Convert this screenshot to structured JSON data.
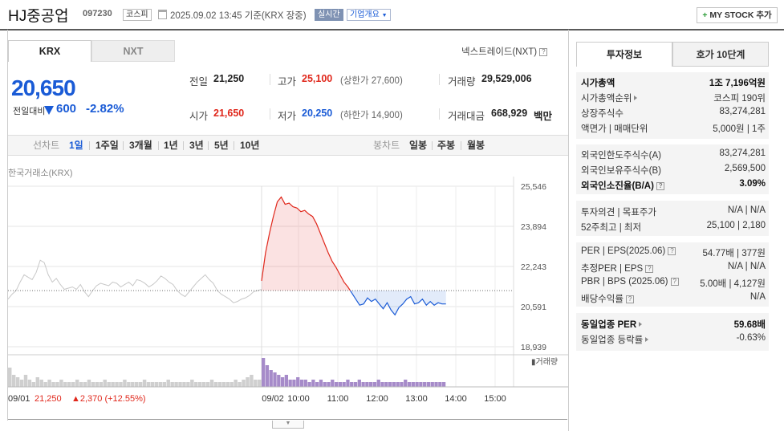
{
  "header": {
    "title": "HJ중공업",
    "code": "097230",
    "market_tag": "코스피",
    "datetime": "2025.09.02 13:45",
    "datetime_suffix": "기준(KRX 장중)",
    "realtime_tag": "실시간",
    "company_tag": "기업개요",
    "mystock_button": "MY STOCK 추가",
    "mystock_icon": "plus-icon"
  },
  "tabs": {
    "krx": "KRX",
    "nxt": "NXT",
    "nxt_link": "넥스트레이드(NXT)"
  },
  "price": {
    "current": "20,650",
    "change_label": "전일대비",
    "change_value": "600",
    "change_pct": "-2.82%",
    "direction_icon": "down-triangle-icon"
  },
  "stats": {
    "prev_close_label": "전일",
    "prev_close": "21,250",
    "high_label": "고가",
    "high": "25,100",
    "upper_limit": "(상한가 27,600)",
    "volume_label": "거래량",
    "volume": "29,529,006",
    "open_label": "시가",
    "open": "21,650",
    "low_label": "저가",
    "low": "20,250",
    "lower_limit": "(하한가 14,900)",
    "amount_label": "거래대금",
    "amount": "668,929",
    "amount_unit": "백만"
  },
  "periods": {
    "line_label": "선차트",
    "items": [
      "1일",
      "1주일",
      "3개월",
      "1년",
      "3년",
      "5년",
      "10년"
    ],
    "active": "1일",
    "candle_label": "봉차트",
    "candle_items": [
      "일봉",
      "주봉",
      "월봉"
    ]
  },
  "chart_data": {
    "type": "line",
    "source_label": "한국거래소(KRX)",
    "y_ticks": [
      "25,546",
      "23,894",
      "22,243",
      "20,591",
      "18,939"
    ],
    "ylim": [
      18939,
      25546
    ],
    "x_ticks": [
      "09/01",
      "09/02",
      "10:00",
      "11:00",
      "12:00",
      "13:00",
      "14:00",
      "15:00"
    ],
    "prev_close": 21250,
    "volume_label": "거래량",
    "prev_day_info": {
      "date": "09/01",
      "close": "21,250",
      "change": "▲2,370",
      "pct": "(+12.55%)"
    },
    "series": [
      {
        "values": [
          20900,
          21100,
          21250,
          21600,
          21900,
          21800,
          21700,
          22000,
          22500,
          22400,
          21900,
          21600,
          21750,
          21500,
          21300,
          21350,
          21400,
          21300,
          21500,
          21200,
          21000,
          21250,
          21450,
          21550,
          21500,
          21450,
          21600,
          21550,
          21400,
          21500,
          21600,
          21450,
          21700,
          21650,
          21550,
          21400,
          21500,
          21650,
          21850,
          21750,
          21600,
          21500,
          21250,
          21100,
          21000,
          21200,
          21400,
          21600,
          21750,
          21900,
          21700,
          21550,
          21250,
          21100,
          21000,
          20900,
          20750,
          20800,
          20900,
          20950,
          21050,
          21200,
          21250,
          21300
        ]
      },
      {
        "values": [
          21650,
          22800,
          23600,
          24300,
          24900,
          25100,
          24800,
          24850,
          24700,
          24650,
          24500,
          24550,
          24400,
          24300,
          24000,
          23600,
          23200,
          22800,
          22450,
          22200,
          21900,
          21600,
          21400,
          21150,
          20900,
          20650,
          20700,
          20950,
          20800,
          20900,
          20700,
          20500,
          20750,
          20450,
          20250,
          20550,
          20700,
          20900,
          21000,
          20700,
          20750,
          20900,
          20650,
          20800,
          20650,
          20750,
          20700,
          20700
        ]
      }
    ],
    "volume_series": [
      [
        8,
        5,
        4,
        3,
        5,
        3,
        2,
        4,
        3,
        2,
        3,
        2,
        2,
        3,
        2,
        2,
        2,
        3,
        2,
        2,
        3,
        2,
        2,
        2,
        3,
        2,
        2,
        2,
        2,
        3,
        2,
        2,
        2,
        2,
        3,
        2,
        2,
        2,
        2,
        2,
        3,
        2,
        2,
        2,
        2,
        2,
        3,
        2,
        2,
        2,
        2,
        3,
        2,
        2,
        2,
        2,
        2,
        3,
        2,
        3,
        4,
        5,
        3,
        3
      ],
      [
        12,
        9,
        7,
        6,
        5,
        4,
        5,
        3,
        3,
        4,
        3,
        3,
        2,
        3,
        2,
        3,
        2,
        2,
        3,
        2,
        2,
        2,
        3,
        2,
        2,
        3,
        2,
        2,
        2,
        2,
        3,
        2,
        2,
        2,
        2,
        2,
        2,
        3,
        2,
        2,
        2,
        2,
        2,
        2,
        2,
        2,
        2,
        2
      ]
    ],
    "colors": {
      "prev_day": "#c8c8c8",
      "up": "#e0271b",
      "down": "#1a5bd6",
      "volume_prev": "#cfcfcf",
      "volume_today": "#a68bc9"
    }
  },
  "info_panel": {
    "tab_info": "투자정보",
    "tab_hoga": "호가 10단계",
    "group1": [
      {
        "k": "시가총액",
        "v": "1조 7,196억원",
        "bold": true
      },
      {
        "k": "시가총액순위",
        "v": "코스피 190위"
      },
      {
        "k": "상장주식수",
        "v": "83,274,281"
      },
      {
        "k": "액면가 | 매매단위",
        "v": "5,000원 | 1주"
      }
    ],
    "group2": [
      {
        "k": "외국인한도주식수(A)",
        "v": "83,274,281"
      },
      {
        "k": "외국인보유주식수(B)",
        "v": "2,569,500"
      },
      {
        "k": "외국인소진율(B/A)",
        "v": "3.09%",
        "bold": true
      }
    ],
    "group3": [
      {
        "k": "투자의견 | 목표주가",
        "v": "N/A | N/A"
      },
      {
        "k": "52주최고 | 최저",
        "v": "25,100 | 2,180"
      }
    ],
    "group4": [
      {
        "k": "PER | EPS(2025.06)",
        "v": "54.77배 | 377원"
      },
      {
        "k": "추정PER | EPS",
        "v": "N/A | N/A"
      },
      {
        "k": "PBR | BPS (2025.06)",
        "v": "5.00배 | 4,127원"
      },
      {
        "k": "배당수익률",
        "v": "N/A"
      }
    ],
    "group5": [
      {
        "k": "동일업종 PER",
        "v": "59.68배",
        "bold": true
      },
      {
        "k": "동일업종 등락률",
        "v": "-0.63%",
        "blue": true
      }
    ]
  }
}
